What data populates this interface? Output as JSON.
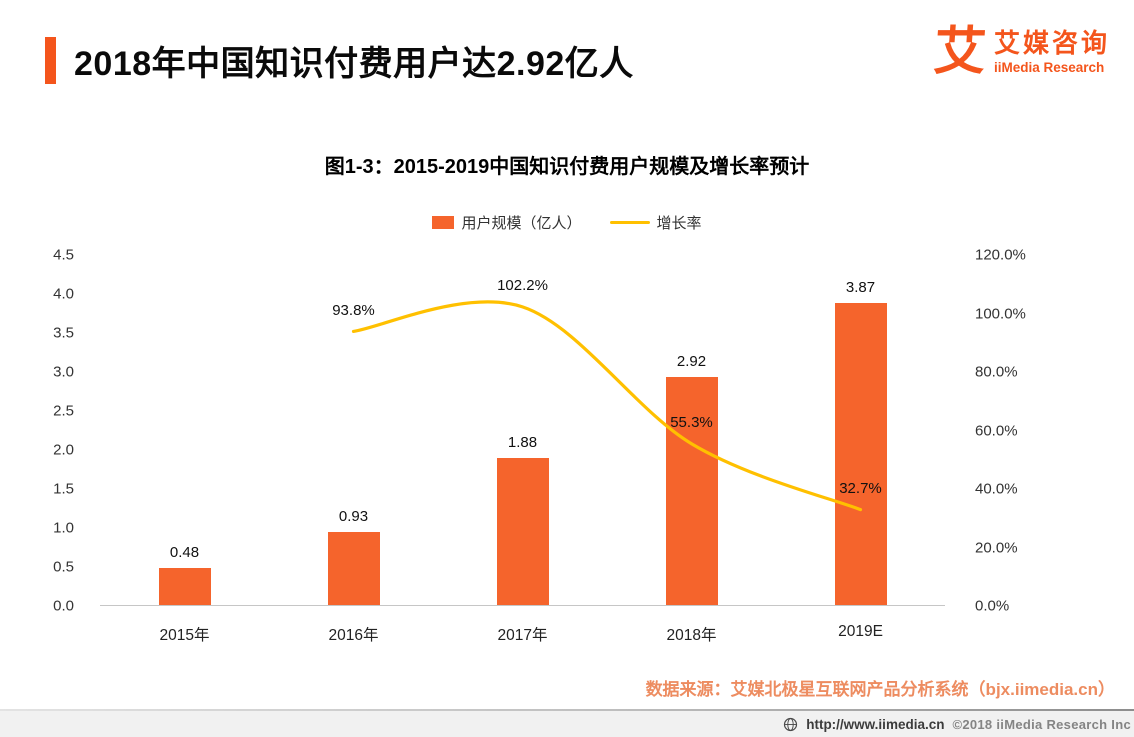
{
  "header": {
    "title": "2018年中国知识付费用户达2.92亿人"
  },
  "logo": {
    "mark": "艾",
    "name_cn": "艾媒咨询",
    "name_en": "iiMedia Research"
  },
  "chart_data": {
    "type": "bar",
    "subtype": "bar+line combo, dual axis",
    "title": "图1-3：2015-2019中国知识付费用户规模及增长率预计",
    "categories": [
      "2015年",
      "2016年",
      "2017年",
      "2018年",
      "2019E"
    ],
    "series": [
      {
        "name": "用户规模（亿人）",
        "type": "bar",
        "axis": "left",
        "color": "#F5642C",
        "values": [
          0.48,
          0.93,
          1.88,
          2.92,
          3.87
        ]
      },
      {
        "name": "增长率",
        "type": "line",
        "axis": "right",
        "color": "#FFC000",
        "values": [
          null,
          93.8,
          102.2,
          55.3,
          32.7
        ]
      }
    ],
    "left_axis": {
      "min": 0,
      "max": 4.5,
      "ticks": [
        "4.5",
        "4.0",
        "3.5",
        "3.0",
        "2.5",
        "2.0",
        "1.5",
        "1.0",
        "0.5",
        "0.0"
      ]
    },
    "right_axis": {
      "min": 0,
      "max": 120,
      "ticks": [
        "120.0%",
        "100.0%",
        "80.0%",
        "60.0%",
        "40.0%",
        "20.0%",
        "0.0%"
      ]
    },
    "legend_position": "top",
    "grid": false
  },
  "source_note": "数据来源：艾媒北极星互联网产品分析系统（bjx.iimedia.cn）",
  "footer": {
    "url": "http://www.iimedia.cn",
    "copyright": "©2018   iiMedia Research Inc"
  },
  "colors": {
    "accent": "#F4551C",
    "bar": "#F5642C",
    "line": "#FFC000",
    "source_text": "#ED8C60"
  }
}
